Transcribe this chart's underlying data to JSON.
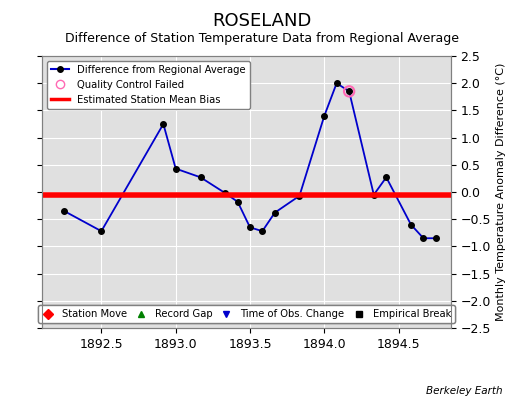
{
  "title": "ROSELAND",
  "subtitle": "Difference of Station Temperature Data from Regional Average",
  "ylabel": "Monthly Temperature Anomaly Difference (°C)",
  "bias_label": "Berkeley Earth",
  "xlim": [
    1892.1,
    1894.85
  ],
  "ylim": [
    -2.5,
    2.5
  ],
  "xticks": [
    1892.5,
    1893.0,
    1893.5,
    1894.0,
    1894.5
  ],
  "yticks": [
    -2.5,
    -2.0,
    -1.5,
    -1.0,
    -0.5,
    0.0,
    0.5,
    1.0,
    1.5,
    2.0,
    2.5
  ],
  "bias_value": -0.05,
  "line_x": [
    1892.25,
    1892.5,
    1892.917,
    1893.0,
    1893.167,
    1893.333,
    1893.417,
    1893.5,
    1893.583,
    1893.667,
    1893.833,
    1894.0,
    1894.083,
    1894.167,
    1894.333,
    1894.417,
    1894.583,
    1894.667,
    1894.75
  ],
  "line_y": [
    -0.35,
    -0.72,
    1.25,
    0.43,
    0.27,
    -0.02,
    -0.18,
    -0.65,
    -0.72,
    -0.38,
    -0.07,
    1.4,
    2.0,
    1.85,
    -0.05,
    0.27,
    -0.6,
    -0.85,
    -0.85
  ],
  "qc_failed_x": [
    1894.167
  ],
  "qc_failed_y": [
    1.85
  ],
  "line_color": "#0000cc",
  "line_width": 1.3,
  "marker_color": "black",
  "marker_size": 4,
  "qc_color": "#ff69b4",
  "bias_color": "red",
  "bias_linewidth": 4,
  "background_color": "#e0e0e0",
  "grid_color": "white",
  "title_fontsize": 13,
  "subtitle_fontsize": 9,
  "tick_fontsize": 9,
  "ylabel_fontsize": 8
}
